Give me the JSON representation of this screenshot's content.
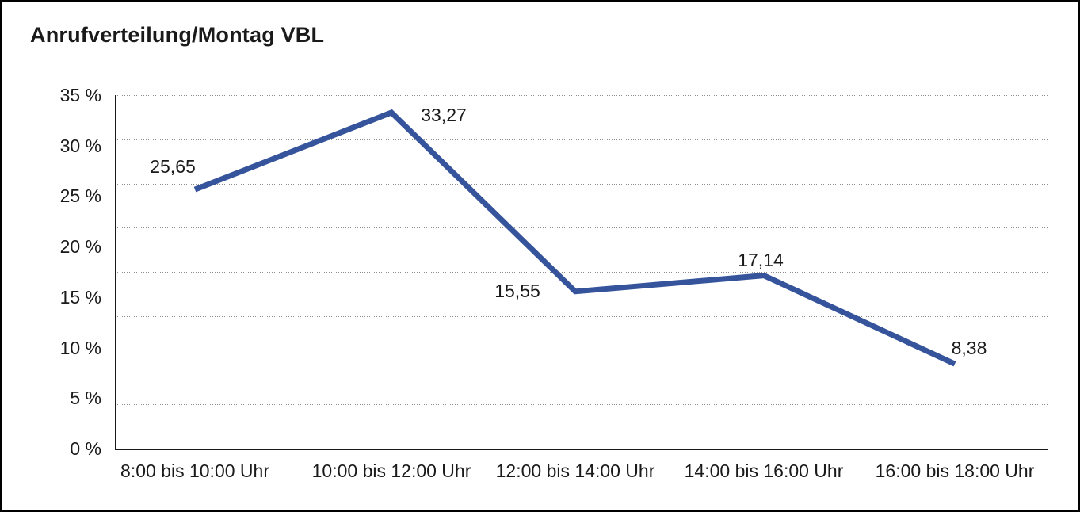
{
  "title": "Anrufverteilung/Montag VBL",
  "chart_data": {
    "type": "line",
    "title": "Anrufverteilung/Montag VBL",
    "categories": [
      "8:00 bis 10:00 Uhr",
      "10:00 bis 12:00 Uhr",
      "12:00 bis 14:00 Uhr",
      "14:00 bis 16:00 Uhr",
      "16:00 bis 18:00 Uhr"
    ],
    "values": [
      25.65,
      33.27,
      15.55,
      17.14,
      8.38
    ],
    "value_labels": [
      "25,65",
      "33,27",
      "15,55",
      "17,14",
      "8,38"
    ],
    "y_tick_labels": [
      "35 %",
      "30 %",
      "25 %",
      "20 %",
      "15 %",
      "10 %",
      "5 %",
      "0 %"
    ],
    "ylim": [
      0,
      35
    ],
    "xlabel": "",
    "ylabel": "",
    "legend": "none",
    "grid": "horizontal-dotted",
    "gridline_rows": 8,
    "line_color": "#36549B",
    "axis_color": "#1a1a1a",
    "gridline_color": "#8c8c8c"
  }
}
